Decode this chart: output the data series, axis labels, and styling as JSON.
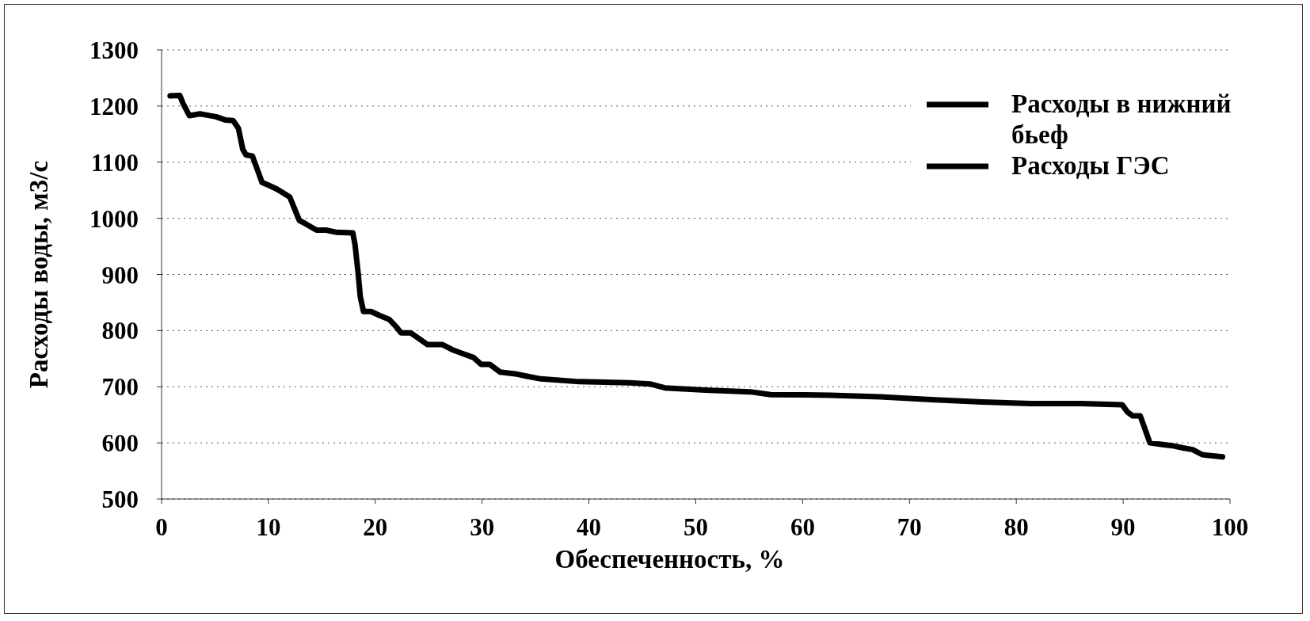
{
  "chart_data": {
    "type": "line",
    "xlabel": "Обеспеченность, %",
    "ylabel": "Расходы воды, м3/с",
    "x": [
      0.8,
      1.7,
      2.0,
      2.6,
      3.6,
      5.1,
      6.0,
      6.7,
      7.2,
      7.6,
      7.9,
      8.5,
      9.0,
      9.4,
      10.0,
      10.8,
      11.4,
      12.0,
      12.4,
      12.9,
      13.5,
      14.5,
      15.4,
      16.4,
      17.9,
      18.1,
      18.4,
      18.6,
      18.9,
      19.6,
      20.4,
      21.3,
      22.0,
      22.4,
      23.3,
      24.0,
      24.9,
      26.3,
      27.2,
      28.2,
      29.2,
      29.9,
      30.7,
      31.7,
      33.1,
      34.1,
      35.5,
      39.1,
      43.8,
      45.7,
      47.1,
      50.9,
      55.1,
      57.0,
      62.6,
      67.3,
      72.0,
      76.8,
      81.4,
      86.1,
      89.9,
      90.4,
      90.9,
      91.6,
      92.0,
      92.5,
      93.7,
      94.6,
      95.6,
      96.5,
      97.4,
      99.3
    ],
    "series": [
      {
        "name": "Расходы в нижний бьеф",
        "color": "#000000",
        "values": [
          1218,
          1219,
          1205,
          1183,
          1186,
          1181,
          1175,
          1174,
          1160,
          1123,
          1113,
          1111,
          1085,
          1064,
          1059,
          1052,
          1045,
          1038,
          1019,
          996,
          990,
          979,
          979,
          975,
          974,
          954,
          902,
          860,
          834,
          834,
          827,
          820,
          806,
          796,
          796,
          787,
          775,
          775,
          766,
          759,
          752,
          740,
          740,
          726,
          723,
          719,
          714,
          709,
          707,
          705,
          698,
          694,
          691,
          686,
          685,
          682,
          677,
          673,
          670,
          670,
          668,
          655,
          648,
          648,
          627,
          600,
          597,
          595,
          591,
          588,
          579,
          575
        ]
      },
      {
        "name": "Расходы ГЭС",
        "color": "#000000",
        "values": [
          null,
          null,
          null,
          null,
          null,
          null,
          null,
          null,
          null,
          null,
          null,
          null,
          null,
          null,
          null,
          null,
          null,
          null,
          null,
          null,
          null,
          null,
          null,
          null,
          null,
          null,
          null,
          null,
          null,
          null,
          null,
          null,
          null,
          null,
          null,
          null,
          null,
          null,
          null,
          null,
          null,
          null,
          null,
          null,
          null,
          null,
          null,
          null,
          null,
          null,
          null,
          null,
          null,
          null,
          null,
          null,
          null,
          null,
          null,
          null,
          null,
          null,
          null,
          null,
          null,
          null,
          null,
          null,
          null,
          null,
          null,
          null
        ]
      }
    ],
    "xlim": [
      0,
      100
    ],
    "xticks": [
      0,
      10,
      20,
      30,
      40,
      50,
      60,
      70,
      80,
      90,
      100
    ],
    "ylim": [
      500,
      1300
    ],
    "yticks": [
      500,
      600,
      700,
      800,
      900,
      1000,
      1100,
      1200,
      1300
    ],
    "grid": "y",
    "legend": "top right"
  }
}
